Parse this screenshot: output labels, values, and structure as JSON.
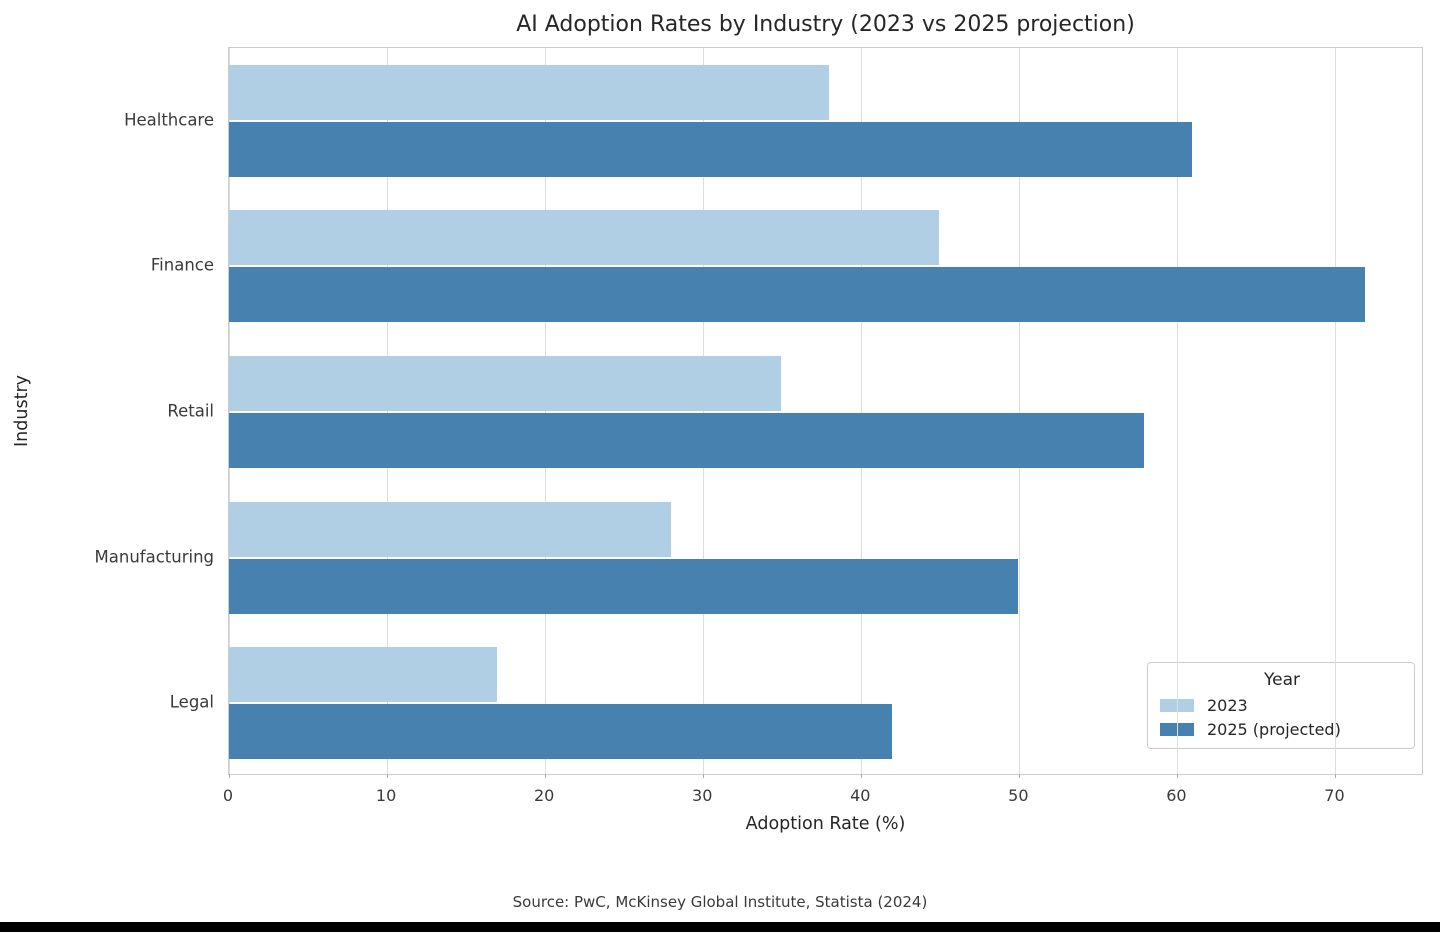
{
  "chart_data": {
    "type": "bar",
    "orientation": "horizontal",
    "title": "AI Adoption Rates by Industry (2023 vs 2025 projection)",
    "xlabel": "Adoption Rate (%)",
    "ylabel": "Industry",
    "categories": [
      "Healthcare",
      "Finance",
      "Retail",
      "Manufacturing",
      "Legal"
    ],
    "series": [
      {
        "name": "2023",
        "color": "#b0cfe4",
        "values": [
          38,
          45,
          35,
          28,
          17
        ]
      },
      {
        "name": "2025 (projected)",
        "color": "#4781b0",
        "values": [
          61,
          72,
          58,
          50,
          42
        ]
      }
    ],
    "xlim": [
      0,
      75.6
    ],
    "xticks": [
      0,
      10,
      20,
      30,
      40,
      50,
      60,
      70
    ],
    "grid": "vertical-gridlines-on",
    "legend": {
      "title": "Year",
      "position": "lower right"
    }
  },
  "footer": {
    "source": "Source: PwC, McKinsey Global Institute, Statista (2024)"
  },
  "colors": {
    "background": "#ffffff",
    "gridline": "#dddddd",
    "spine": "#cccccc",
    "text": "#262626",
    "tick_text": "#3a3a3a",
    "bottom_bar": "#000000",
    "series_2023": "#b0cfe4",
    "series_2025": "#4781b0"
  }
}
